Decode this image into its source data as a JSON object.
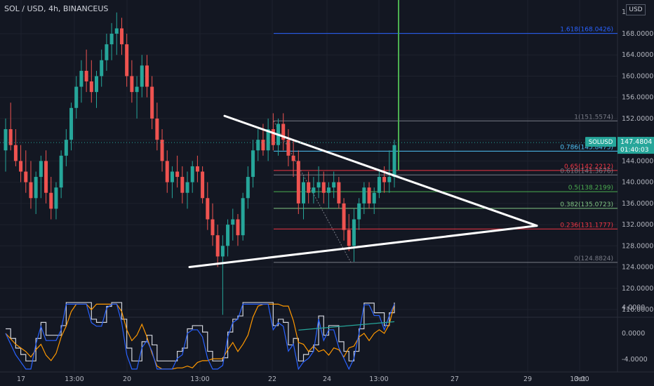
{
  "header": {
    "title": "SOL / USD, 4h, BINANCEUS"
  },
  "currency_button": "USD",
  "price_axis": {
    "ticks": [
      "168.0000",
      "164.0000",
      "160.0000",
      "156.0000",
      "152.0000",
      "148.0000",
      "144.0000",
      "140.0000",
      "136.0000",
      "132.0000",
      "128.0000",
      "124.0000",
      "120.0000",
      "116.0000"
    ],
    "top_tick_partial": "17"
  },
  "current_price": {
    "symbol": "SOLUSD",
    "price": "147.4804",
    "countdown": "01:40:03",
    "color": "#26a69a"
  },
  "indicator_axis": {
    "ticks": [
      "4.0000",
      "0.0000",
      "-4.0000"
    ]
  },
  "time_axis": {
    "labels": [
      "17",
      "13:00",
      "20",
      "13:00",
      "22",
      "24",
      "13:00",
      "27",
      "29",
      "Oct",
      "13:00"
    ]
  },
  "fib_levels": [
    {
      "label": "1.618(168.0426)",
      "value": 168.0426,
      "color": "#2962ff"
    },
    {
      "label": "1(151.5574)",
      "value": 151.5574,
      "color": "#787b86"
    },
    {
      "label": "0.786(145.8475)",
      "value": 145.8475,
      "color": "#4fc3f7"
    },
    {
      "label": "0.65(142.2212)",
      "value": 142.2212,
      "color": "#f23645"
    },
    {
      "label": "0.618(141.3676)",
      "value": 141.3676,
      "color": "#787b86"
    },
    {
      "label": "0.5(138.2199)",
      "value": 138.2199,
      "color": "#4caf50"
    },
    {
      "label": "0.382(135.0723)",
      "value": 135.0723,
      "color": "#81c784"
    },
    {
      "label": "0.236(131.1777)",
      "value": 131.1777,
      "color": "#f23645"
    },
    {
      "label": "0(124.8824)",
      "value": 124.8824,
      "color": "#787b86"
    }
  ],
  "colors": {
    "up": "#26a69a",
    "down": "#ef5350",
    "background": "#131722",
    "grid": "#1e222d",
    "text": "#b2b5be",
    "trendline": "#ffffff",
    "projection": "#4caf50"
  },
  "chart_data": {
    "type": "candlestick",
    "symbol": "SOL / USD",
    "interval": "4h",
    "exchange": "BINANCEUS",
    "ylim": [
      115,
      176
    ],
    "candles": [
      [
        146,
        152,
        142,
        150
      ],
      [
        150,
        155,
        146,
        147
      ],
      [
        147,
        150,
        143,
        144
      ],
      [
        144,
        147,
        140,
        142
      ],
      [
        142,
        146,
        138,
        140
      ],
      [
        140,
        144,
        135,
        137
      ],
      [
        137,
        142,
        134,
        141
      ],
      [
        141,
        145,
        137,
        144
      ],
      [
        144,
        146,
        136,
        138
      ],
      [
        138,
        141,
        133,
        135
      ],
      [
        135,
        140,
        133,
        139
      ],
      [
        139,
        146,
        137,
        145
      ],
      [
        145,
        150,
        143,
        148
      ],
      [
        148,
        155,
        146,
        154
      ],
      [
        154,
        160,
        152,
        158
      ],
      [
        158,
        163,
        155,
        161
      ],
      [
        161,
        165,
        157,
        159
      ],
      [
        159,
        163,
        155,
        157
      ],
      [
        157,
        161,
        154,
        160
      ],
      [
        160,
        165,
        158,
        163
      ],
      [
        163,
        168,
        161,
        166
      ],
      [
        166,
        170,
        163,
        168
      ],
      [
        168,
        172,
        164,
        169
      ],
      [
        169,
        171,
        164,
        166
      ],
      [
        166,
        168,
        158,
        160
      ],
      [
        160,
        163,
        155,
        157
      ],
      [
        157,
        160,
        152,
        158
      ],
      [
        158,
        164,
        156,
        162
      ],
      [
        162,
        164,
        156,
        158
      ],
      [
        158,
        160,
        150,
        152
      ],
      [
        152,
        155,
        146,
        148
      ],
      [
        148,
        150,
        142,
        144
      ],
      [
        144,
        146,
        138,
        140
      ],
      [
        140,
        143,
        137,
        142
      ],
      [
        142,
        145,
        139,
        141
      ],
      [
        141,
        143,
        136,
        138
      ],
      [
        138,
        142,
        135,
        140
      ],
      [
        140,
        144,
        138,
        143
      ],
      [
        143,
        145,
        140,
        142
      ],
      [
        142,
        143,
        136,
        137
      ],
      [
        137,
        140,
        131,
        133
      ],
      [
        133,
        136,
        128,
        130
      ],
      [
        130,
        132,
        124,
        126
      ],
      [
        126,
        130,
        115,
        128
      ],
      [
        128,
        133,
        126,
        132
      ],
      [
        132,
        135,
        129,
        133
      ],
      [
        133,
        134,
        128,
        130
      ],
      [
        130,
        138,
        129,
        137
      ],
      [
        137,
        143,
        135,
        141
      ],
      [
        141,
        148,
        139,
        146
      ],
      [
        146,
        150,
        144,
        148
      ],
      [
        148,
        151,
        145,
        146
      ],
      [
        146,
        152,
        144,
        150
      ],
      [
        150,
        153,
        146,
        147
      ],
      [
        147,
        152,
        145,
        151
      ],
      [
        151,
        153,
        146,
        148
      ],
      [
        148,
        150,
        143,
        145
      ],
      [
        145,
        148,
        141,
        144
      ],
      [
        144,
        146,
        134,
        136
      ],
      [
        136,
        141,
        133,
        140
      ],
      [
        140,
        142,
        136,
        138
      ],
      [
        138,
        141,
        136,
        139
      ],
      [
        139,
        143,
        137,
        140
      ],
      [
        140,
        142,
        136,
        138
      ],
      [
        138,
        140,
        135,
        139
      ],
      [
        139,
        142,
        137,
        140
      ],
      [
        140,
        141,
        135,
        136
      ],
      [
        136,
        137,
        129,
        131
      ],
      [
        131,
        134,
        127,
        128
      ],
      [
        128,
        135,
        125,
        133
      ],
      [
        133,
        137,
        131,
        136
      ],
      [
        136,
        140,
        134,
        139
      ],
      [
        139,
        140,
        135,
        136
      ],
      [
        136,
        139,
        134,
        138
      ],
      [
        138,
        142,
        137,
        141
      ],
      [
        141,
        143,
        138,
        140
      ],
      [
        140,
        146,
        138,
        141
      ],
      [
        141,
        148,
        139,
        147
      ]
    ],
    "trendlines": [
      {
        "from": [
          320,
          152.5
        ],
        "to": [
          765,
          131.8
        ]
      },
      {
        "from": [
          270,
          124.0
        ],
        "to": [
          765,
          131.8
        ]
      }
    ],
    "projection": {
      "x": 568,
      "from": 142.3,
      "to": 175.5
    },
    "oscillator": {
      "ylim": [
        -6,
        5.5
      ],
      "series": [
        "histogram",
        "fast",
        "slow"
      ]
    }
  }
}
